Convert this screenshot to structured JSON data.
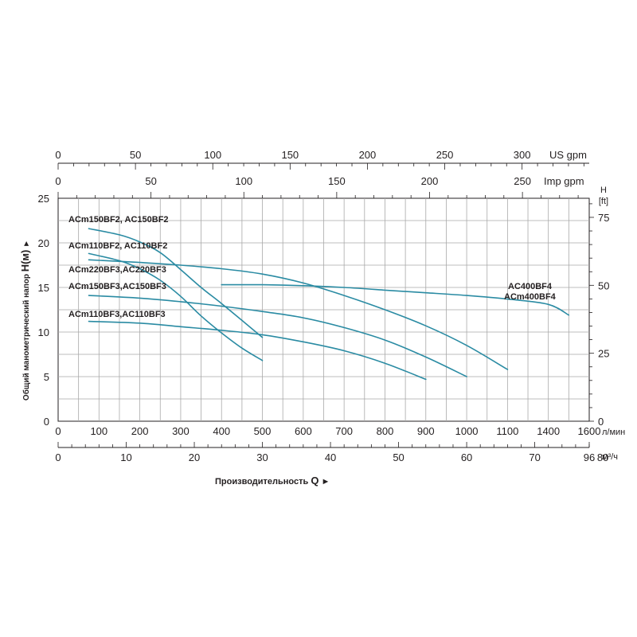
{
  "chart_data": {
    "type": "line",
    "xlabel": "Производительность Q",
    "ylabel": "Общий манометрический напор H(м)",
    "xlim": [
      0,
      1300
    ],
    "ylim": [
      0,
      25
    ],
    "grid": true,
    "line_color": "#2a8ba3",
    "primary_x_axis": {
      "unit": "л/мин",
      "ticks": [
        0,
        100,
        200,
        300,
        400,
        500,
        600,
        700,
        800,
        900,
        1000,
        1100,
        1400,
        1600
      ]
    },
    "m3h_axis": {
      "unit": "м³/ч",
      "ticks": [
        "0",
        "10",
        "20",
        "30",
        "40",
        "50",
        "60",
        "70",
        "80",
        "96"
      ]
    },
    "us_gpm_axis": {
      "unit": "US gpm",
      "ticks": [
        "0",
        "50",
        "100",
        "150",
        "200",
        "250",
        "300"
      ]
    },
    "imp_gpm_axis": {
      "unit": "Imp gpm",
      "ticks": [
        "0",
        "50",
        "100",
        "150",
        "200",
        "250"
      ]
    },
    "y_ticks": [
      "0",
      "5",
      "10",
      "15",
      "20",
      "25"
    ],
    "y_right": {
      "title": "H",
      "unit": "[ft]",
      "ticks": [
        "0",
        "25",
        "50",
        "75"
      ]
    },
    "series": [
      {
        "name": "ACm150BF2, AC150BF2",
        "x": [
          75,
          150,
          200,
          250,
          300,
          350,
          400,
          450,
          500
        ],
        "y": [
          21.6,
          20.9,
          20.1,
          18.9,
          17.0,
          15.0,
          13.2,
          11.3,
          9.4
        ]
      },
      {
        "name": "ACm110BF2, AC110BF2",
        "x": [
          75,
          150,
          200,
          250,
          300,
          350,
          400,
          450,
          500
        ],
        "y": [
          18.8,
          18.0,
          17.1,
          15.8,
          14.0,
          11.8,
          9.9,
          8.2,
          6.8
        ]
      },
      {
        "name": "ACm220BF3,AC220BF3",
        "x": [
          75,
          200,
          300,
          400,
          500,
          600,
          700,
          800,
          900,
          1000,
          1100
        ],
        "y": [
          18.1,
          17.8,
          17.5,
          17.1,
          16.5,
          15.5,
          14.1,
          12.5,
          10.7,
          8.5,
          5.8
        ]
      },
      {
        "name": "ACm150BF3,AC150BF3",
        "x": [
          75,
          200,
          300,
          400,
          500,
          600,
          700,
          800,
          900,
          1000
        ],
        "y": [
          14.1,
          13.8,
          13.4,
          12.9,
          12.3,
          11.6,
          10.5,
          9.1,
          7.2,
          5.0
        ]
      },
      {
        "name": "ACm110BF3,AC110BF3",
        "x": [
          75,
          200,
          300,
          400,
          500,
          600,
          700,
          800,
          900
        ],
        "y": [
          11.2,
          11.0,
          10.6,
          10.2,
          9.7,
          8.9,
          7.9,
          6.5,
          4.7
        ]
      },
      {
        "name": "AC400BF4 ACm400BF4",
        "x": [
          400,
          500,
          600,
          700,
          800,
          900,
          1000,
          1100,
          1200,
          1250
        ],
        "y": [
          15.3,
          15.3,
          15.2,
          15.0,
          14.7,
          14.4,
          14.1,
          13.7,
          13.1,
          11.9
        ]
      }
    ]
  }
}
